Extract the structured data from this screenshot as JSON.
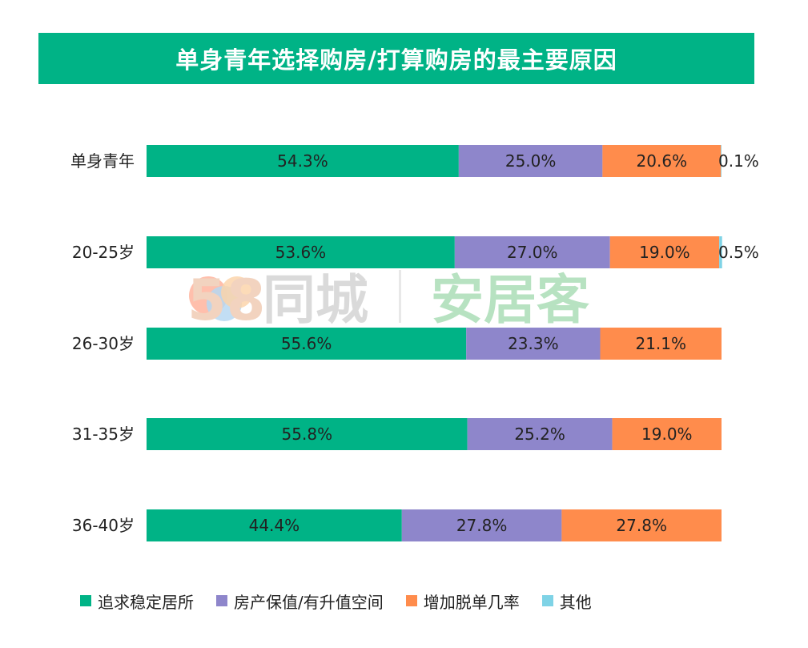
{
  "title": "单身青年选择购房/打算购房的最主要原因",
  "watermark": {
    "brand_a_num": "58",
    "brand_a_text": "同城",
    "brand_b_text": "安居客"
  },
  "chart_data": {
    "type": "bar",
    "orientation": "horizontal",
    "stacked": true,
    "unit": "%",
    "categories": [
      "单身青年",
      "20-25岁",
      "26-30岁",
      "31-35岁",
      "36-40岁"
    ],
    "xlim": [
      0,
      100
    ],
    "grid": false,
    "legend_position": "bottom",
    "series": [
      {
        "name": "追求稳定居所",
        "color": "#00B386",
        "values": [
          54.3,
          53.6,
          55.6,
          55.8,
          44.4
        ],
        "labels": [
          "54.3%",
          "53.6%",
          "55.6%",
          "55.8%",
          "44.4%"
        ]
      },
      {
        "name": "房产保值/有升值空间",
        "color": "#8E86CB",
        "values": [
          25.0,
          27.0,
          23.3,
          25.2,
          27.8
        ],
        "labels": [
          "25.0%",
          "27.0%",
          "23.3%",
          "25.2%",
          "27.8%"
        ]
      },
      {
        "name": "增加脱单几率",
        "color": "#FF8C4C",
        "values": [
          20.6,
          19.0,
          21.1,
          19.0,
          27.8
        ],
        "labels": [
          "20.6%",
          "19.0%",
          "21.1%",
          "19.0%",
          "27.8%"
        ]
      },
      {
        "name": "其他",
        "color": "#7FD3E6",
        "values": [
          0.1,
          0.5,
          0,
          0,
          0
        ],
        "labels": [
          "0.1%",
          "0.5%",
          "",
          "",
          ""
        ]
      }
    ]
  }
}
